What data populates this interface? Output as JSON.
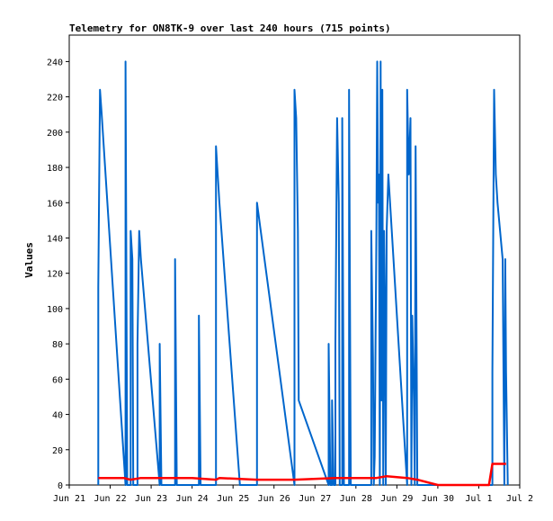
{
  "chart_data": {
    "type": "line",
    "title": "Telemetry for ON8TK-9 over last 240 hours (715 points)",
    "xlabel": "",
    "ylabel": "Values",
    "xlim": [
      "Jun 21",
      "Jul 2"
    ],
    "ylim": [
      0,
      255
    ],
    "x_ticks": [
      "Jun 21",
      "Jun 22",
      "Jun 23",
      "Jun 24",
      "Jun 25",
      "Jun 26",
      "Jun 27",
      "Jun 28",
      "Jun 29",
      "Jun 30",
      "Jul 1",
      "Jul 2"
    ],
    "y_ticks": [
      0,
      20,
      40,
      60,
      80,
      100,
      120,
      140,
      160,
      180,
      200,
      220,
      240
    ],
    "grid": false,
    "legend": "none",
    "series": [
      {
        "color": "#0066cc",
        "points": [
          [
            "Jun 21 17:00",
            0
          ],
          [
            "Jun 21 17:00",
            112
          ],
          [
            "Jun 21 18:00",
            224
          ],
          [
            "Jun 21 19:00",
            210
          ],
          [
            "Jun 22 09:00",
            0
          ],
          [
            "Jun 22 09:00",
            240
          ],
          [
            "Jun 22 10:00",
            0
          ],
          [
            "Jun 22 12:00",
            0
          ],
          [
            "Jun 22 12:00",
            144
          ],
          [
            "Jun 22 13:00",
            128
          ],
          [
            "Jun 22 13:30",
            0
          ],
          [
            "Jun 22 16:00",
            0
          ],
          [
            "Jun 22 16:00",
            80
          ],
          [
            "Jun 22 17:00",
            144
          ],
          [
            "Jun 22 18:00",
            128
          ],
          [
            "Jun 23 05:00",
            0
          ],
          [
            "Jun 23 05:00",
            80
          ],
          [
            "Jun 23 06:00",
            0
          ],
          [
            "Jun 23 14:00",
            0
          ],
          [
            "Jun 23 14:00",
            128
          ],
          [
            "Jun 23 15:00",
            0
          ],
          [
            "Jun 24 04:00",
            0
          ],
          [
            "Jun 24 04:00",
            96
          ],
          [
            "Jun 24 05:00",
            0
          ],
          [
            "Jun 24 14:00",
            0
          ],
          [
            "Jun 24 14:00",
            192
          ],
          [
            "Jun 24 15:00",
            176
          ],
          [
            "Jun 24 16:00",
            160
          ],
          [
            "Jun 25 04:00",
            0
          ],
          [
            "Jun 25 14:00",
            0
          ],
          [
            "Jun 25 14:00",
            160
          ],
          [
            "Jun 26 12:00",
            0
          ],
          [
            "Jun 26 12:00",
            224
          ],
          [
            "Jun 26 13:00",
            208
          ],
          [
            "Jun 26 14:00",
            144
          ],
          [
            "Jun 26 14:30",
            48
          ],
          [
            "Jun 27 08:00",
            0
          ],
          [
            "Jun 27 08:00",
            80
          ],
          [
            "Jun 27 09:00",
            0
          ],
          [
            "Jun 27 10:00",
            0
          ],
          [
            "Jun 27 10:00",
            48
          ],
          [
            "Jun 27 11:00",
            0
          ],
          [
            "Jun 27 12:00",
            0
          ],
          [
            "Jun 27 12:00",
            80
          ],
          [
            "Jun 27 13:00",
            208
          ],
          [
            "Jun 27 14:00",
            160
          ],
          [
            "Jun 27 14:30",
            0
          ],
          [
            "Jun 27 16:00",
            0
          ],
          [
            "Jun 27 16:00",
            208
          ],
          [
            "Jun 27 17:00",
            0
          ],
          [
            "Jun 27 20:00",
            0
          ],
          [
            "Jun 27 20:00",
            224
          ],
          [
            "Jun 27 21:00",
            0
          ],
          [
            "Jun 28 09:00",
            0
          ],
          [
            "Jun 28 09:00",
            144
          ],
          [
            "Jun 28 10:00",
            72
          ],
          [
            "Jun 28 10:30",
            0
          ],
          [
            "Jun 28 11:00",
            16
          ],
          [
            "Jun 28 12:00",
            144
          ],
          [
            "Jun 28 12:30",
            240
          ],
          [
            "Jun 28 13:00",
            160
          ],
          [
            "Jun 28 13:30",
            176
          ],
          [
            "Jun 28 14:00",
            0
          ],
          [
            "Jun 28 14:30",
            240
          ],
          [
            "Jun 28 15:00",
            48
          ],
          [
            "Jun 28 15:30",
            224
          ],
          [
            "Jun 28 16:00",
            0
          ],
          [
            "Jun 28 16:30",
            144
          ],
          [
            "Jun 28 17:00",
            96
          ],
          [
            "Jun 28 17:30",
            0
          ],
          [
            "Jun 28 18:00",
            144
          ],
          [
            "Jun 28 19:00",
            176
          ],
          [
            "Jun 28 20:00",
            160
          ],
          [
            "Jun 29 06:00",
            0
          ],
          [
            "Jun 29 06:00",
            224
          ],
          [
            "Jun 29 07:00",
            176
          ],
          [
            "Jun 29 08:00",
            208
          ],
          [
            "Jun 29 08:30",
            0
          ],
          [
            "Jun 29 09:00",
            96
          ],
          [
            "Jun 29 10:00",
            48
          ],
          [
            "Jun 29 10:30",
            0
          ],
          [
            "Jun 29 11:00",
            192
          ],
          [
            "Jun 29 12:00",
            0
          ],
          [
            "Jul 1 08:00",
            0
          ],
          [
            "Jul 1 08:00",
            64
          ],
          [
            "Jul 1 09:00",
            224
          ],
          [
            "Jul 1 10:00",
            176
          ],
          [
            "Jul 1 11:00",
            160
          ],
          [
            "Jul 1 14:00",
            128
          ],
          [
            "Jul 1 15:00",
            0
          ],
          [
            "Jul 1 15:30",
            128
          ],
          [
            "Jul 1 16:00",
            64
          ],
          [
            "Jul 1 17:00",
            0
          ]
        ]
      },
      {
        "color": "#ff0000",
        "points": [
          [
            "Jun 21 17:00",
            4
          ],
          [
            "Jun 22 08:00",
            4
          ],
          [
            "Jun 22 12:00",
            3
          ],
          [
            "Jun 22 18:00",
            4
          ],
          [
            "Jun 24 00:00",
            4
          ],
          [
            "Jun 24 14:00",
            3
          ],
          [
            "Jun 24 16:00",
            4
          ],
          [
            "Jun 25 14:00",
            3
          ],
          [
            "Jun 26 12:00",
            3
          ],
          [
            "Jun 27 12:00",
            4
          ],
          [
            "Jun 28 12:00",
            4
          ],
          [
            "Jun 28 18:00",
            5
          ],
          [
            "Jun 29 06:00",
            4
          ],
          [
            "Jun 29 12:00",
            3
          ],
          [
            "Jun 30 00:00",
            0
          ],
          [
            "Jul 1 00:00",
            0
          ],
          [
            "Jul 1 06:00",
            0
          ],
          [
            "Jul 1 08:00",
            12
          ],
          [
            "Jul 1 16:00",
            12
          ]
        ]
      }
    ]
  }
}
